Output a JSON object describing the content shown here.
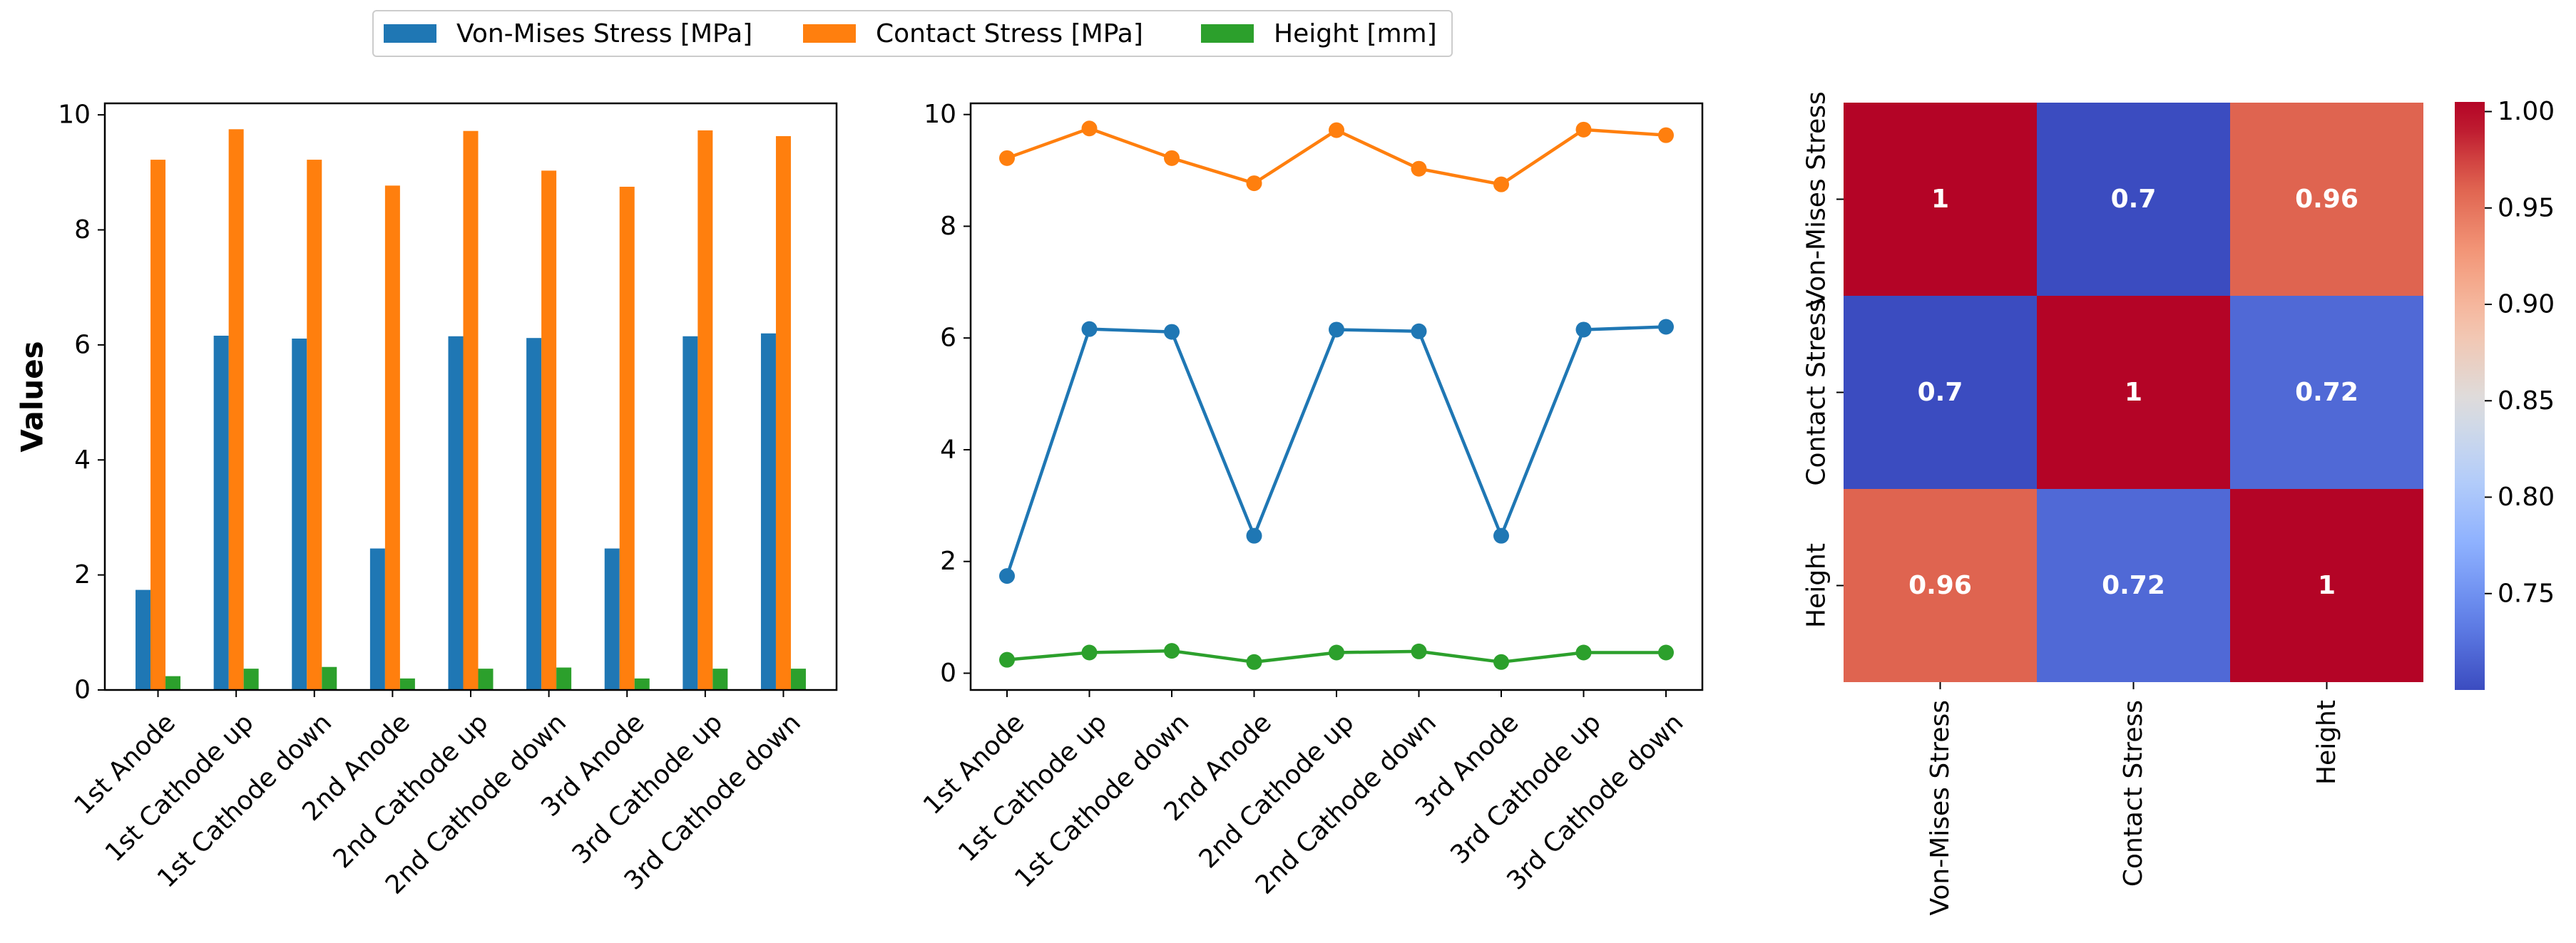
{
  "legend": [
    {
      "label": "Von-Mises Stress [MPa]",
      "color": "#1f77b4"
    },
    {
      "label": "Contact Stress [MPa]",
      "color": "#ff7f0e"
    },
    {
      "label": "Height [mm]",
      "color": "#2ca02c"
    }
  ],
  "chart_data": [
    {
      "type": "bar",
      "ylabel": "Values",
      "xlabel": "",
      "ylim": [
        0,
        10.2
      ],
      "yticks": [
        "0",
        "2",
        "4",
        "6",
        "8",
        "10"
      ],
      "categories": [
        "1st Anode",
        "1st Cathode up",
        "1st Cathode down",
        "2nd Anode",
        "2nd Cathode up",
        "2nd Cathode down",
        "3rd Anode",
        "3rd Cathode up",
        "3rd Cathode down"
      ],
      "series": [
        {
          "name": "Von-Mises Stress [MPa]",
          "color": "#1f77b4",
          "values": [
            1.74,
            6.16,
            6.11,
            2.46,
            6.15,
            6.12,
            2.46,
            6.15,
            6.2
          ]
        },
        {
          "name": "Contact Stress [MPa]",
          "color": "#ff7f0e",
          "values": [
            9.22,
            9.75,
            9.22,
            8.77,
            9.72,
            9.03,
            8.75,
            9.73,
            9.63
          ]
        },
        {
          "name": "Height [mm]",
          "color": "#2ca02c",
          "values": [
            0.24,
            0.37,
            0.4,
            0.2,
            0.37,
            0.39,
            0.2,
            0.37,
            0.37
          ]
        }
      ]
    },
    {
      "type": "line",
      "ylim": [
        -0.3,
        10.2
      ],
      "yticks": [
        "0",
        "2",
        "4",
        "6",
        "8",
        "10"
      ],
      "categories": [
        "1st Anode",
        "1st Cathode up",
        "1st Cathode down",
        "2nd Anode",
        "2nd Cathode up",
        "2nd Cathode down",
        "3rd Anode",
        "3rd Cathode up",
        "3rd Cathode down"
      ],
      "series": [
        {
          "name": "Von-Mises Stress [MPa]",
          "color": "#1f77b4",
          "values": [
            1.74,
            6.16,
            6.11,
            2.46,
            6.15,
            6.12,
            2.46,
            6.15,
            6.2
          ]
        },
        {
          "name": "Contact Stress [MPa]",
          "color": "#ff7f0e",
          "values": [
            9.22,
            9.75,
            9.22,
            8.77,
            9.72,
            9.03,
            8.75,
            9.73,
            9.63
          ]
        },
        {
          "name": "Height [mm]",
          "color": "#2ca02c",
          "values": [
            0.24,
            0.37,
            0.4,
            0.2,
            0.37,
            0.39,
            0.2,
            0.37,
            0.37
          ]
        }
      ]
    },
    {
      "type": "heatmap",
      "labels": [
        "Von-Mises Stress",
        "Contact Stress",
        "Height"
      ],
      "values": [
        [
          1,
          0.7,
          0.96
        ],
        [
          0.7,
          1,
          0.72
        ],
        [
          0.96,
          0.72,
          1
        ]
      ],
      "annotations": [
        [
          "1",
          "0.7",
          "0.96"
        ],
        [
          "0.7",
          "1",
          "0.72"
        ],
        [
          "0.96",
          "0.72",
          "1"
        ]
      ],
      "colormap": "coolwarm",
      "vmin": 0.7,
      "vmax": 1.0,
      "colorbar_ticks": [
        "0.75",
        "0.80",
        "0.85",
        "0.90",
        "0.95",
        "1.00"
      ]
    }
  ]
}
